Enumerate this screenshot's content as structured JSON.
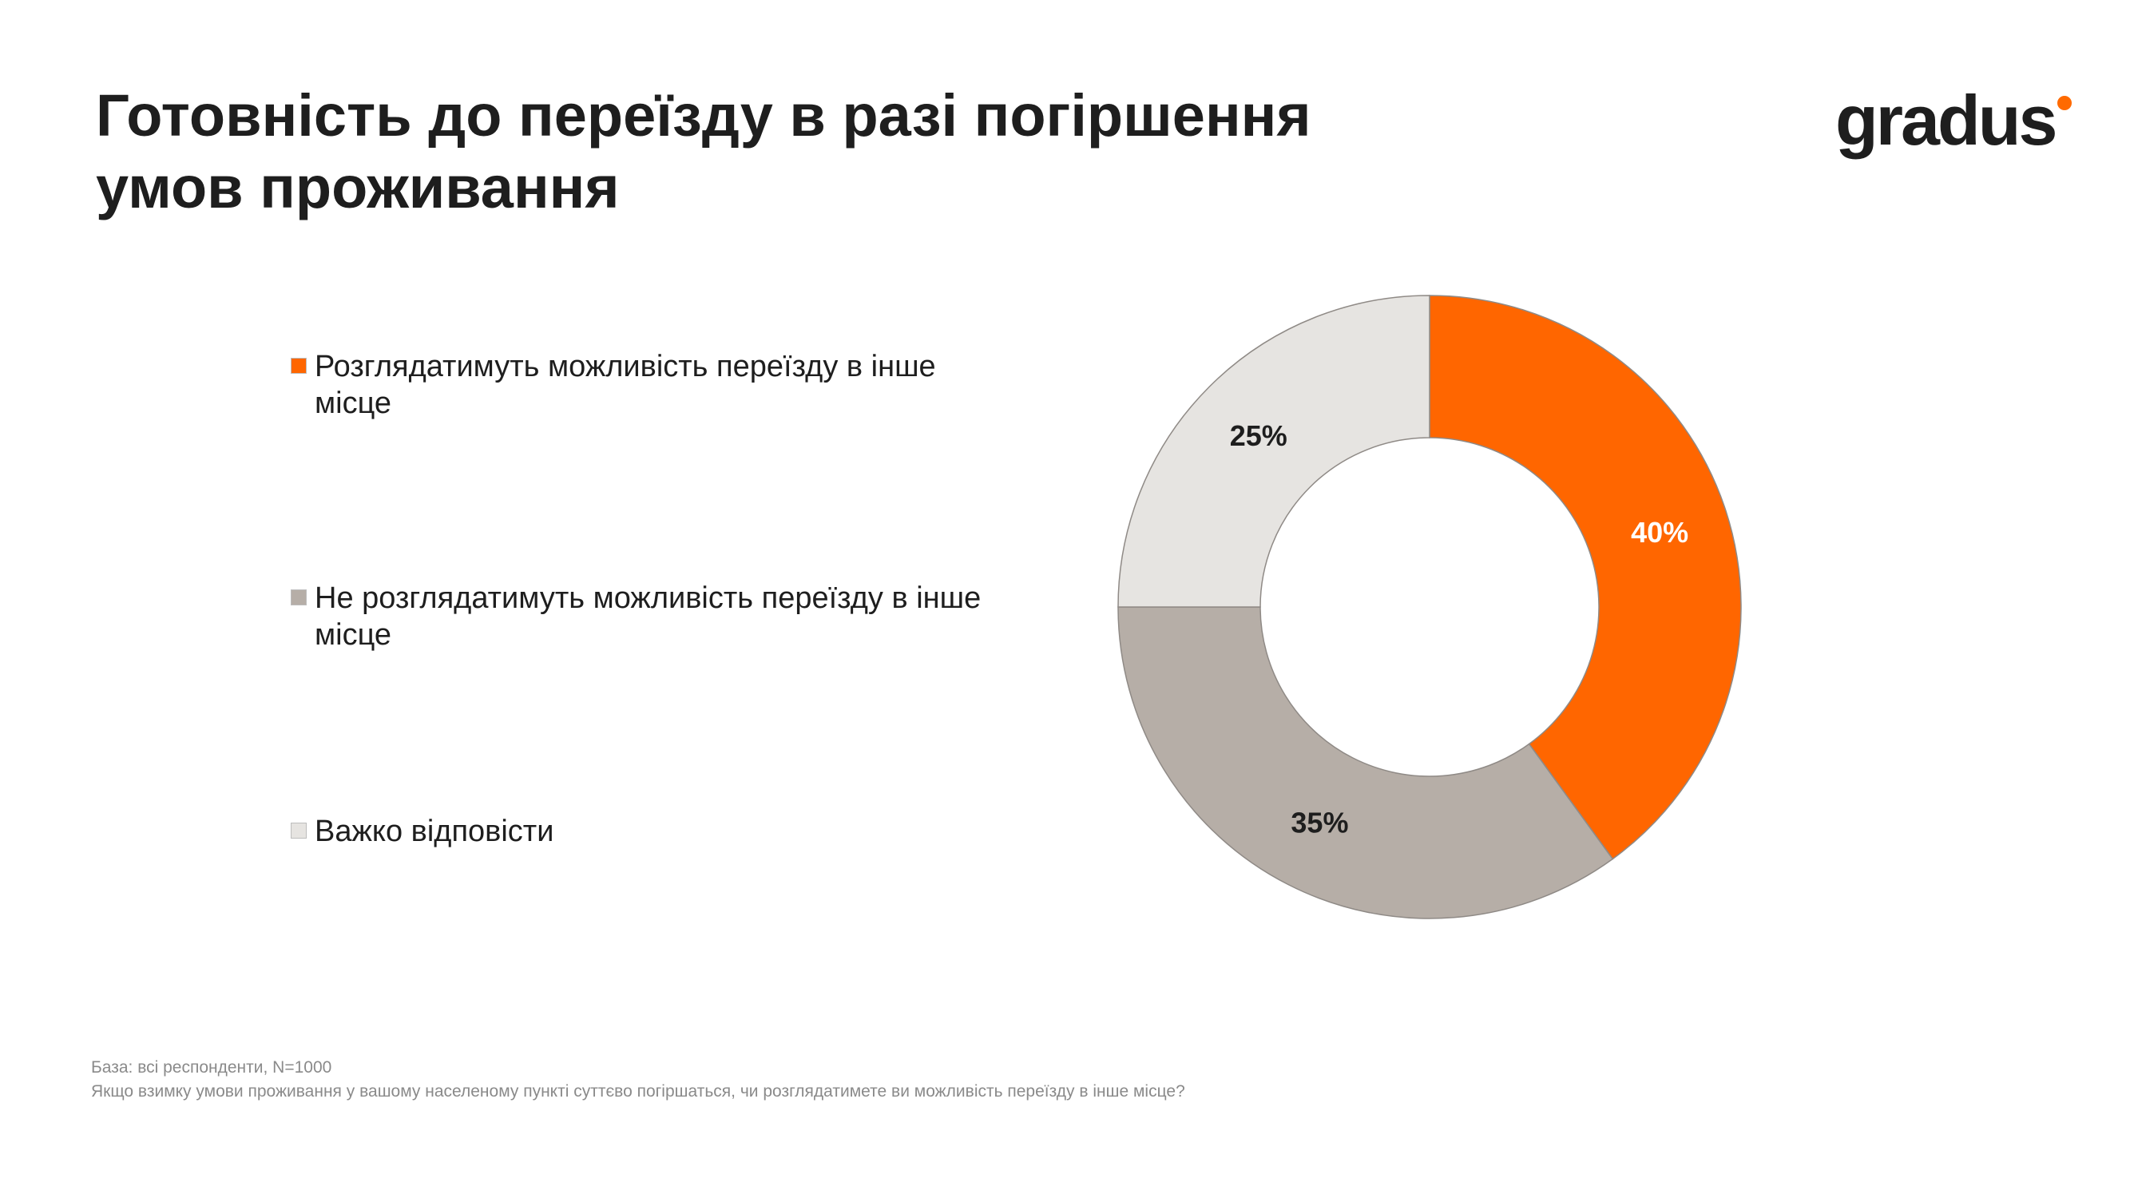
{
  "title": "Готовність до переїзду в разі погіршення умов проживання",
  "logo": {
    "text": "gradus",
    "dot_color": "#ff6a00"
  },
  "chart_data": {
    "type": "pie",
    "subtype": "donut",
    "title": "",
    "legend_position": "left",
    "slices": [
      {
        "label": "Розглядатимуть можливість переїзду в інше місце",
        "value": 40,
        "display": "40%",
        "color": "#ff6600",
        "label_color": "#ffffff"
      },
      {
        "label": "Не розглядатимуть можливість переїзду в інше місце",
        "value": 35,
        "display": "35%",
        "color": "#b6aea7",
        "label_color": "#1e1e1e"
      },
      {
        "label": "Важко відповісти",
        "value": 25,
        "display": "25%",
        "color": "#e6e4e1",
        "label_color": "#1e1e1e"
      }
    ]
  },
  "footnotes": {
    "base": "База: всі респонденти, N=1000",
    "question": "Якщо взимку умови проживання у вашому населеному пункті суттєво погіршаться, чи розглядатимете ви можливість переїзду в інше місце?"
  }
}
